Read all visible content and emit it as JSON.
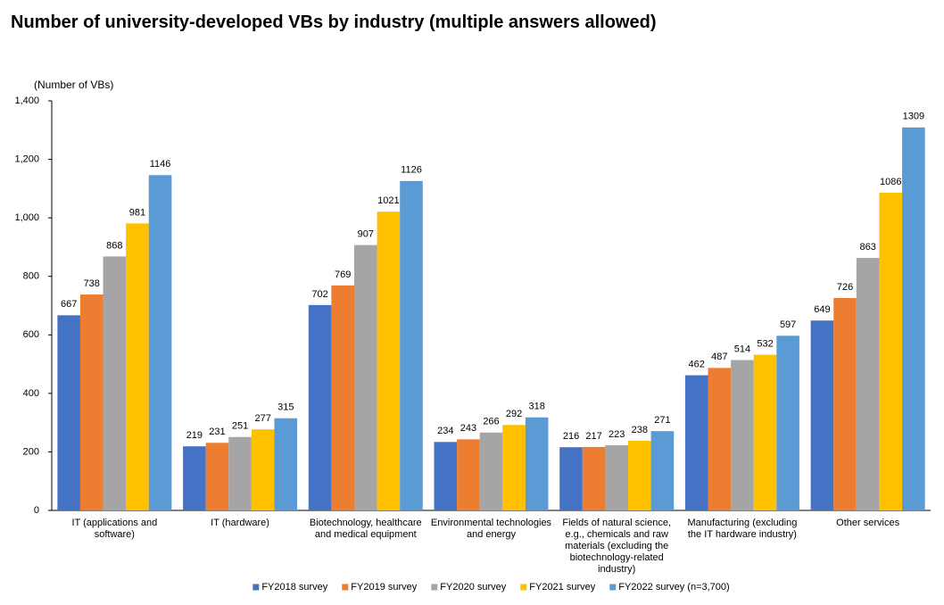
{
  "chart_data": {
    "type": "bar",
    "title": "Number of university-developed VBs by industry (multiple answers allowed)",
    "y_label": "(Number of VBs)",
    "categories": [
      "IT (applications and software)",
      "IT (hardware)",
      "Biotechnology, healthcare and medical equipment",
      "Environmental technologies and energy",
      "Fields of natural science, e.g., chemicals and raw materials (excluding the biotechnology-related industry)",
      "Manufacturing (excluding the IT hardware industry)",
      "Other services"
    ],
    "series": [
      {
        "name": "FY2018 survey",
        "color": "#4472c4",
        "values": [
          667,
          219,
          702,
          234,
          216,
          462,
          649
        ]
      },
      {
        "name": "FY2019 survey",
        "color": "#ed7d31",
        "values": [
          738,
          231,
          769,
          243,
          217,
          487,
          726
        ]
      },
      {
        "name": "FY2020 survey",
        "color": "#a5a5a5",
        "values": [
          868,
          251,
          907,
          266,
          223,
          514,
          863
        ]
      },
      {
        "name": "FY2021 survey",
        "color": "#ffc000",
        "values": [
          981,
          277,
          1021,
          292,
          238,
          532,
          1086
        ]
      },
      {
        "name": "FY2022 survey (n=3,700)",
        "color": "#5b9bd5",
        "values": [
          1146,
          315,
          1126,
          318,
          271,
          597,
          1309
        ]
      }
    ],
    "ylim": [
      0,
      1400
    ],
    "yticks": [
      0,
      200,
      400,
      600,
      800,
      {
        "value": 1000,
        "label": "1,000"
      },
      {
        "value": 1200,
        "label": "1,200"
      },
      {
        "value": 1400,
        "label": "1,400"
      }
    ],
    "grid": false,
    "legend": "bottom"
  }
}
